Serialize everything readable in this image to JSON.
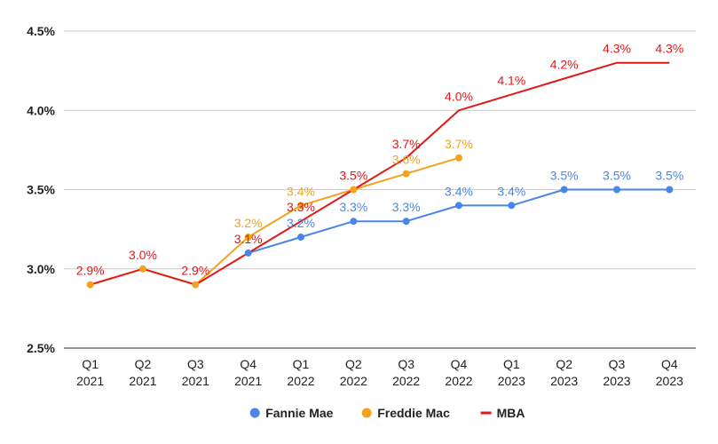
{
  "chart_data": {
    "type": "line",
    "title": "",
    "xlabel": "",
    "ylabel": "",
    "ylim": [
      2.5,
      4.5
    ],
    "yticks": [
      2.5,
      3.0,
      3.5,
      4.0,
      4.5
    ],
    "ytick_labels": [
      "2.5%",
      "3.0%",
      "3.5%",
      "4.0%",
      "4.5%"
    ],
    "grid": true,
    "legend_position": "bottom",
    "categories": [
      [
        "Q1",
        "2021"
      ],
      [
        "Q2",
        "2021"
      ],
      [
        "Q3",
        "2021"
      ],
      [
        "Q4",
        "2021"
      ],
      [
        "Q1",
        "2022"
      ],
      [
        "Q2",
        "2022"
      ],
      [
        "Q3",
        "2022"
      ],
      [
        "Q4",
        "2022"
      ],
      [
        "Q1",
        "2023"
      ],
      [
        "Q2",
        "2023"
      ],
      [
        "Q3",
        "2023"
      ],
      [
        "Q4",
        "2023"
      ]
    ],
    "series": [
      {
        "name": "Fannie Mae",
        "color": "#4a86e8",
        "markers": true,
        "values": [
          null,
          null,
          null,
          3.1,
          3.2,
          3.3,
          3.3,
          3.4,
          3.4,
          3.5,
          3.5,
          3.5
        ],
        "labels": [
          null,
          null,
          null,
          null,
          "3.2%",
          "3.3%",
          "3.3%",
          "3.4%",
          "3.4%",
          "3.5%",
          "3.5%",
          "3.5%"
        ]
      },
      {
        "name": "Freddie Mac",
        "color": "#f4a21d",
        "markers": true,
        "values": [
          2.9,
          3.0,
          2.9,
          3.2,
          3.4,
          3.5,
          3.6,
          3.7,
          null,
          null,
          null,
          null
        ],
        "labels": [
          null,
          null,
          null,
          "3.2%",
          "3.4%",
          null,
          "3.6%",
          "3.7%",
          null,
          null,
          null,
          null
        ]
      },
      {
        "name": "MBA",
        "color": "#e01919",
        "markers": false,
        "values": [
          2.9,
          3.0,
          2.9,
          3.1,
          3.3,
          3.5,
          3.7,
          4.0,
          4.1,
          4.2,
          4.3,
          4.3
        ],
        "labels": [
          "2.9%",
          "3.0%",
          "2.9%",
          "3.1%",
          "3.3%",
          "3.5%",
          "3.7%",
          "4.0%",
          "4.1%",
          "4.2%",
          "4.3%",
          "4.3%"
        ]
      }
    ]
  }
}
